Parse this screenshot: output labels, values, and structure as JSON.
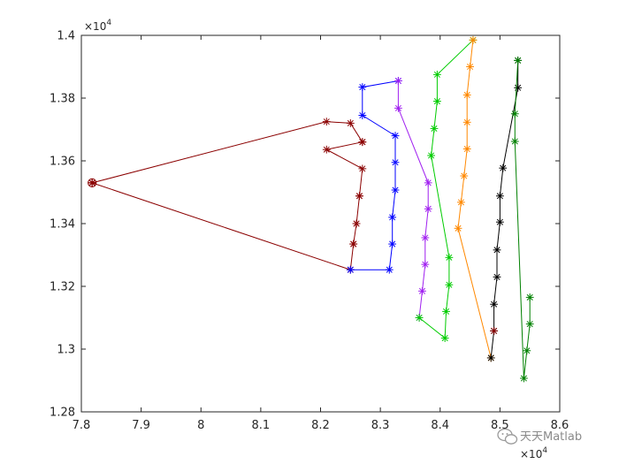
{
  "chart_data": {
    "type": "line",
    "title": "",
    "xlabel": "",
    "ylabel": "",
    "xlim": [
      78000,
      86000
    ],
    "ylim": [
      12800,
      14000
    ],
    "x_ticks": [
      "7.8",
      "7.9",
      "8",
      "8.1",
      "8.2",
      "8.3",
      "8.4",
      "8.5",
      "8.6"
    ],
    "y_ticks": [
      "1.28",
      "1.3",
      "1.32",
      "1.34",
      "1.36",
      "1.38",
      "1.4"
    ],
    "x_multiplier": "×10",
    "y_multiplier": "×10",
    "multiplier_exponent": "4",
    "grid": false,
    "marker": "asterisk",
    "depot": {
      "x": 78180,
      "y": 13530,
      "color": "#8B0000"
    },
    "series": [
      {
        "color": "#8B0000",
        "points": [
          [
            78180,
            13530
          ],
          [
            82100,
            13725
          ],
          [
            82500,
            13720
          ],
          [
            82700,
            13660
          ],
          [
            82100,
            13636
          ],
          [
            82700,
            13575
          ],
          [
            82650,
            13488
          ],
          [
            82600,
            13400
          ],
          [
            82550,
            13335
          ],
          [
            82500,
            13253
          ],
          [
            78180,
            13530
          ]
        ]
      },
      {
        "color": "#0000FF",
        "points": [
          [
            82500,
            13253
          ],
          [
            83150,
            13253
          ],
          [
            83200,
            13335
          ],
          [
            83200,
            13420
          ],
          [
            83250,
            13507
          ],
          [
            83250,
            13595
          ],
          [
            83250,
            13680
          ],
          [
            82700,
            13745
          ],
          [
            82700,
            13835
          ],
          [
            83300,
            13855
          ]
        ]
      },
      {
        "color": "#A020F0",
        "points": [
          [
            83300,
            13855
          ],
          [
            83300,
            13768
          ],
          [
            83800,
            13530
          ],
          [
            83800,
            13447
          ],
          [
            83750,
            13355
          ],
          [
            83750,
            13270
          ],
          [
            83700,
            13185
          ],
          [
            83650,
            13100
          ]
        ]
      },
      {
        "color": "#00CC00",
        "points": [
          [
            83650,
            13100
          ],
          [
            84080,
            13035
          ],
          [
            84100,
            13120
          ],
          [
            84150,
            13205
          ],
          [
            84150,
            13292
          ],
          [
            83850,
            13617
          ],
          [
            83900,
            13703
          ],
          [
            83950,
            13790
          ],
          [
            83950,
            13875
          ],
          [
            84550,
            13985
          ]
        ]
      },
      {
        "color": "#FF8800",
        "points": [
          [
            84550,
            13985
          ],
          [
            84500,
            13900
          ],
          [
            84450,
            13810
          ],
          [
            84450,
            13723
          ],
          [
            84450,
            13638
          ],
          [
            84400,
            13552
          ],
          [
            84350,
            13468
          ],
          [
            84300,
            13385
          ],
          [
            84850,
            12972
          ]
        ]
      },
      {
        "color": "#000000",
        "points": [
          [
            84850,
            12972
          ],
          [
            84900,
            13058
          ],
          [
            84900,
            13143
          ],
          [
            84950,
            13230
          ],
          [
            84950,
            13316
          ],
          [
            85000,
            13405
          ],
          [
            85000,
            13488
          ],
          [
            85050,
            13577
          ],
          [
            85300,
            13833
          ],
          [
            85300,
            13920
          ]
        ]
      },
      {
        "color": "#008000",
        "points": [
          [
            85300,
            13920
          ],
          [
            85250,
            13750
          ],
          [
            85250,
            13662
          ],
          [
            85400,
            12907
          ],
          [
            85450,
            12995
          ],
          [
            85500,
            13080
          ],
          [
            85500,
            13165
          ]
        ]
      }
    ],
    "overlay_points": [
      {
        "color": "#8B0000",
        "x": 82700,
        "y": 13660
      },
      {
        "color": "#8B0000",
        "x": 82650,
        "y": 13488
      },
      {
        "color": "#8B0000",
        "x": 82600,
        "y": 13400
      },
      {
        "color": "#8B0000",
        "x": 82550,
        "y": 13335
      },
      {
        "color": "#8B0000",
        "x": 84900,
        "y": 13058
      }
    ]
  },
  "watermark": {
    "text": "天天Matlab"
  }
}
